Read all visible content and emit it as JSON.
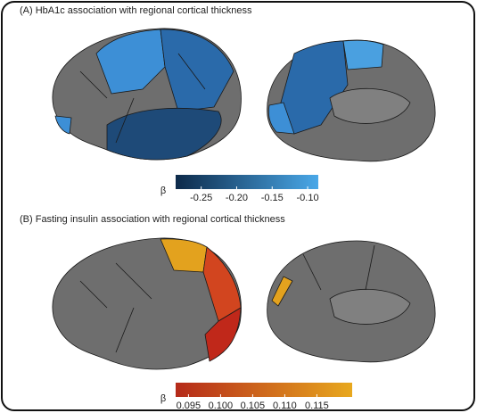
{
  "panels": [
    {
      "title": "(A) HbA1c association with regional cortical thickness",
      "legend_symbol": "β",
      "colorbar": {
        "lim": [
          -0.286,
          -0.085
        ],
        "colors": [
          "#0d2a4a",
          "#4aa8e8"
        ],
        "ticks": [
          -0.25,
          {
            "value": -0.2,
            "label": "-0.20"
          },
          -0.15,
          {
            "value": -0.1,
            "label": "-0.10"
          }
        ]
      }
    },
    {
      "title": "(B) Fasting insulin association with regional cortical thickness",
      "legend_symbol": "β",
      "colorbar": {
        "lim": [
          0.093,
          0.1205
        ],
        "colors": [
          "#b52a1a",
          "#e8a81e"
        ],
        "ticks": [
          0.095,
          {
            "value": 0.1,
            "label": "0.100"
          },
          0.105,
          {
            "value": 0.11,
            "label": "0.110"
          },
          0.115
        ]
      }
    }
  ]
}
